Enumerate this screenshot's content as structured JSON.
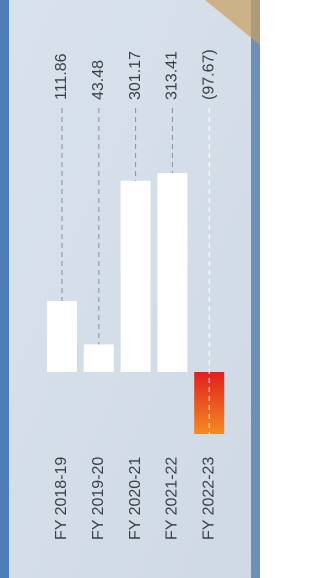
{
  "chart_data": {
    "type": "bar",
    "categories": [
      "FY 2018-19",
      "FY 2019-20",
      "FY 2020-21",
      "FY 2021-22",
      "FY 2022-23"
    ],
    "values": [
      111.86,
      43.48,
      301.17,
      313.41,
      -97.67
    ],
    "value_labels": [
      "111.86",
      "43.48",
      "301.17",
      "313.41",
      "(97.67)"
    ],
    "color": "#ffffff",
    "negative_color": [
      "#e0201e",
      "#f58a1f"
    ]
  }
}
